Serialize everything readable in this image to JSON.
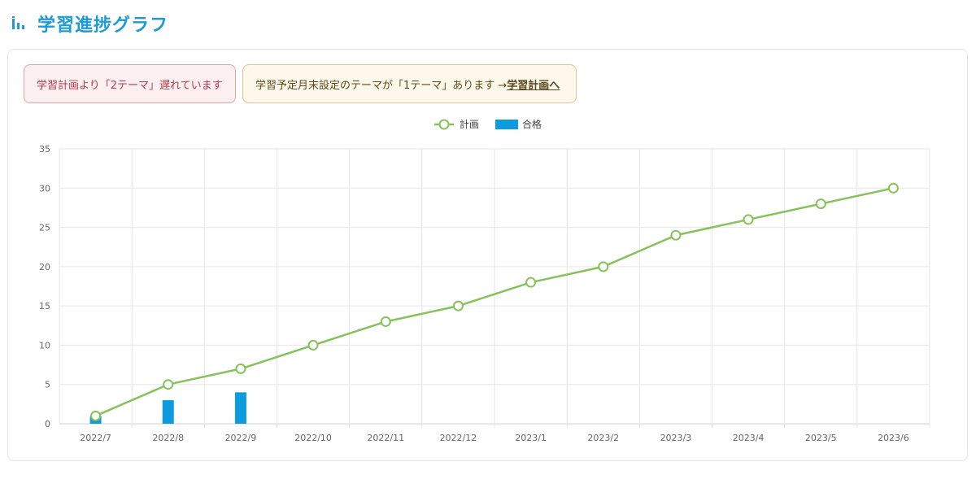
{
  "header": {
    "title": "学習進捗グラフ",
    "icon": "bar-chart-icon"
  },
  "alerts": {
    "danger": {
      "text": "学習計画より「2テーマ」遅れています"
    },
    "warning": {
      "text": "学習予定月末設定のテーマが「1テーマ」あります → ",
      "link_label": "学習計画へ"
    }
  },
  "colors": {
    "accent": "#1a9ad6",
    "plan": "#86c25a",
    "pass": "#0d9be0"
  },
  "chart_data": {
    "type": "bar",
    "categories": [
      "2022/7",
      "2022/8",
      "2022/9",
      "2022/10",
      "2022/11",
      "2022/12",
      "2023/1",
      "2023/2",
      "2023/3",
      "2023/4",
      "2023/5",
      "2023/6"
    ],
    "series": [
      {
        "name": "計画",
        "type": "line",
        "values": [
          1,
          5,
          7,
          10,
          13,
          15,
          18,
          20,
          24,
          26,
          28,
          30
        ]
      },
      {
        "name": "合格",
        "type": "bar",
        "values": [
          1,
          3,
          4,
          null,
          null,
          null,
          null,
          null,
          null,
          null,
          null,
          null
        ]
      }
    ],
    "ylim": [
      0,
      35
    ],
    "yticks": [
      0,
      5,
      10,
      15,
      20,
      25,
      30,
      35
    ],
    "legend": "top-center",
    "grid": true
  }
}
